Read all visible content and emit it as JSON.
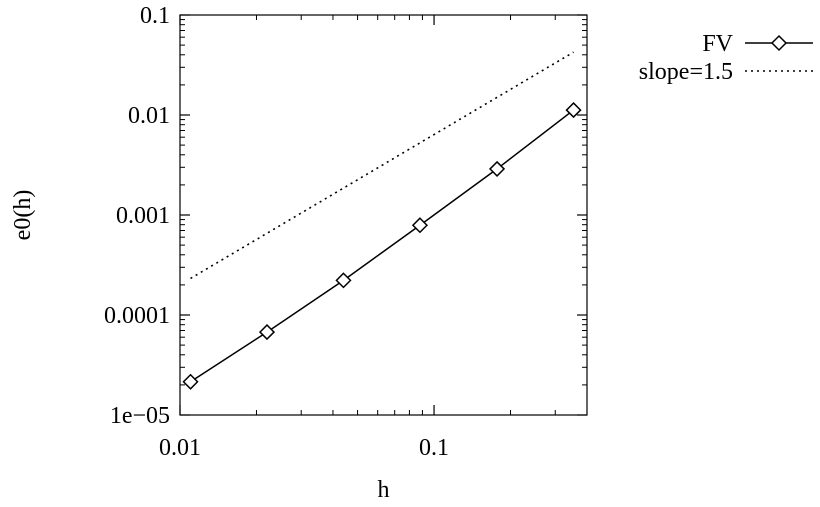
{
  "chart_data": {
    "type": "line",
    "title": "",
    "xlabel": "h",
    "ylabel": "e0(h)",
    "x_scale": "log",
    "y_scale": "log",
    "xlim": [
      0.01,
      0.4
    ],
    "ylim": [
      1e-05,
      0.1
    ],
    "x_ticks": [
      {
        "value": 0.01,
        "label": "0.01"
      },
      {
        "value": 0.1,
        "label": "0.1"
      }
    ],
    "y_ticks": [
      {
        "value": 1e-05,
        "label": "1e−05"
      },
      {
        "value": 0.0001,
        "label": "0.0001"
      },
      {
        "value": 0.001,
        "label": "0.001"
      },
      {
        "value": 0.01,
        "label": "0.01"
      },
      {
        "value": 0.1,
        "label": "0.1"
      }
    ],
    "grid": false,
    "legend_position": "outside-top-right",
    "series": [
      {
        "name": "FV",
        "style": "solid-line-diamond-markers",
        "color": "#000000",
        "x": [
          0.011,
          0.022,
          0.044,
          0.088,
          0.177,
          0.354
        ],
        "y": [
          2.15e-05,
          6.75e-05,
          0.000222,
          0.00079,
          0.00289,
          0.0112
        ]
      },
      {
        "name": "slope=1.5",
        "style": "dotted-line",
        "color": "#000000",
        "x": [
          0.011,
          0.354
        ],
        "y": [
          0.000232,
          0.0425
        ]
      }
    ]
  }
}
